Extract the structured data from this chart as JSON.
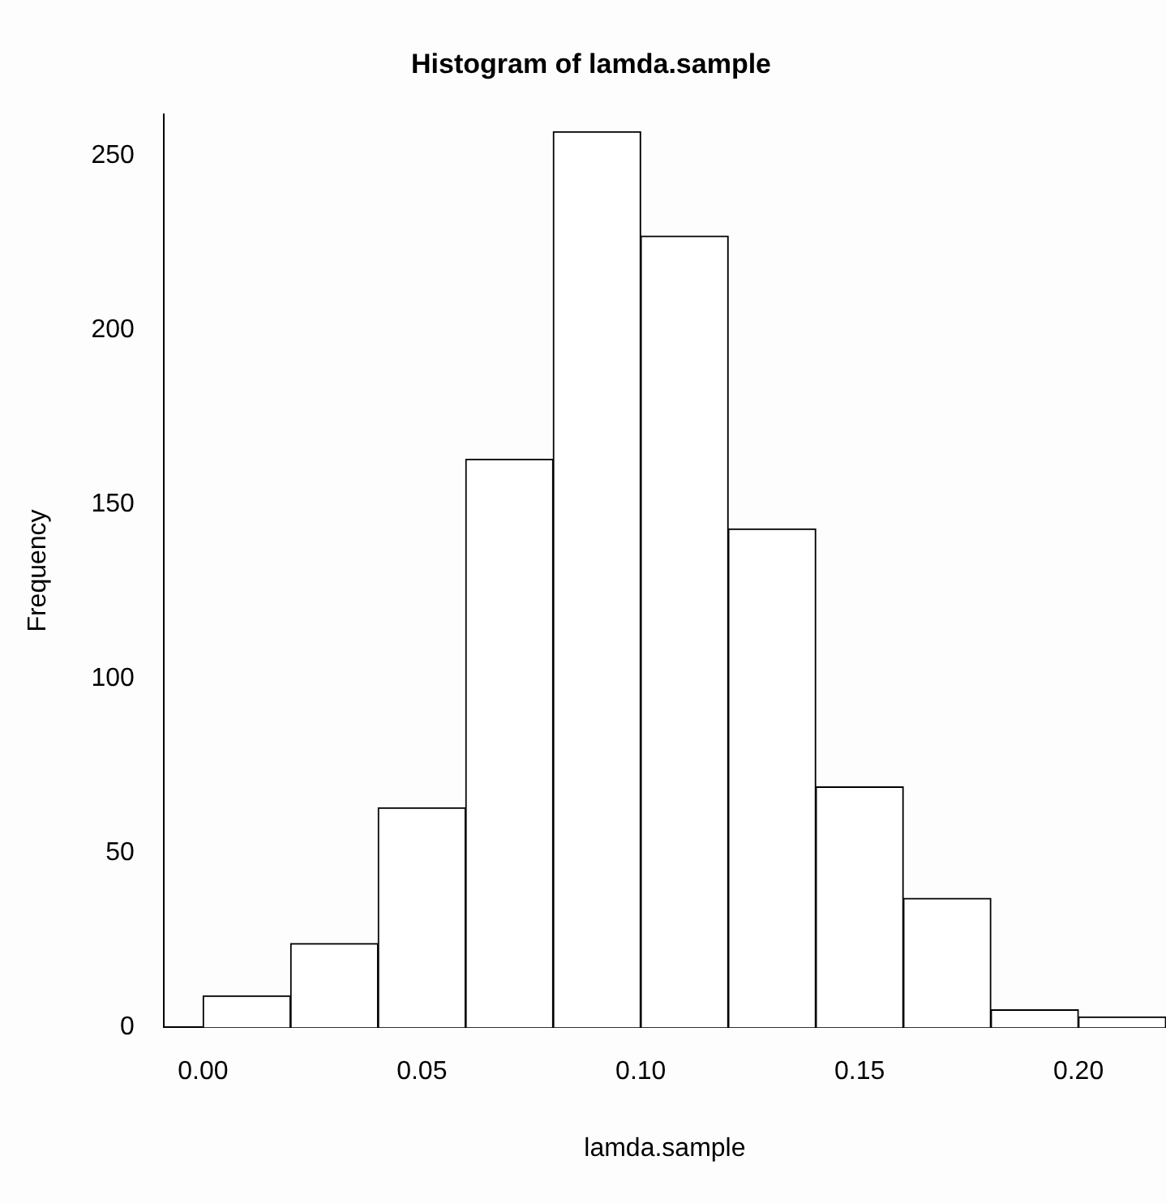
{
  "chart_data": {
    "type": "histogram",
    "title": "Histogram of lamda.sample",
    "xlabel": "lamda.sample",
    "ylabel": "Frequency",
    "bins": [
      0,
      0.02,
      0.04,
      0.06,
      0.08,
      0.1,
      0.12,
      0.14,
      0.16,
      0.18,
      0.2,
      0.22
    ],
    "values": [
      9,
      24,
      63,
      163,
      257,
      227,
      143,
      69,
      37,
      5,
      3
    ],
    "color": "#ffffff",
    "xlim": [
      -0.009,
      0.22
    ],
    "xticks": [
      {
        "value": 0,
        "label": "0.00"
      },
      {
        "value": 0.05,
        "label": "0.05"
      },
      {
        "value": 0.1,
        "label": "0.10"
      },
      {
        "value": 0.15,
        "label": "0.15"
      },
      {
        "value": 0.2,
        "label": "0.20"
      }
    ],
    "ylim": [
      0,
      262
    ],
    "yticks": [
      0,
      50,
      100,
      150,
      200,
      250
    ],
    "grid": false,
    "legend": false
  }
}
